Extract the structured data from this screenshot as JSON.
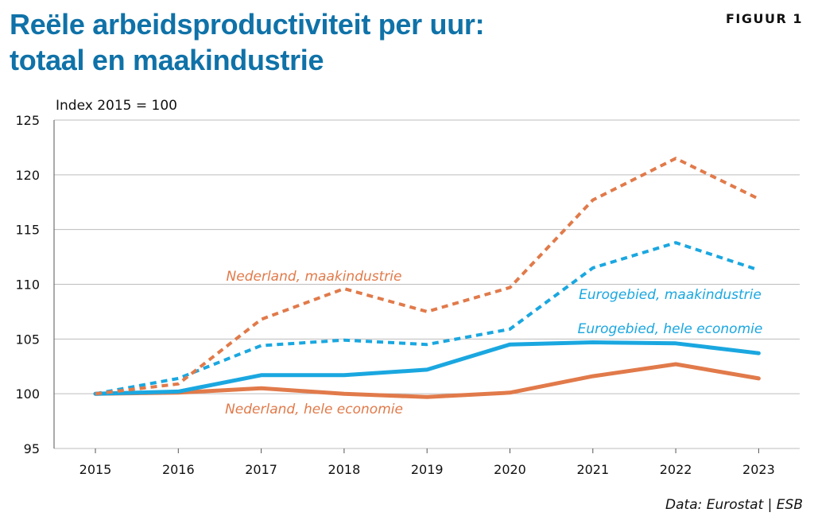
{
  "header": {
    "title_line1": "Reële arbeidsproductiviteit per uur:",
    "title_line2": "totaal en maakindustrie",
    "figure_label": "FIGUUR 1"
  },
  "source": "Data: Eurostat | ESB",
  "chart_data": {
    "type": "line",
    "title": "Reële arbeidsproductiviteit per uur: totaal en maakindustrie",
    "ylabel": "Index 2015 = 100",
    "xlabel": "",
    "ylim": [
      95,
      125
    ],
    "yticks": [
      95,
      100,
      105,
      110,
      115,
      120,
      125
    ],
    "x": [
      "2015",
      "2016",
      "2017",
      "2018",
      "2019",
      "2020",
      "2021",
      "2022",
      "2023"
    ],
    "grid": true,
    "colors": {
      "orange": "#e17a4a",
      "blue": "#1aa7e0",
      "gridline": "#bdbdbd",
      "title": "#0f72a8"
    },
    "series": [
      {
        "name": "Nederland, maakindustrie",
        "color": "#e17a4a",
        "style": "dotted",
        "values": [
          100,
          100.9,
          106.8,
          109.6,
          107.5,
          109.7,
          117.7,
          121.5,
          117.8
        ]
      },
      {
        "name": "Eurogebied, maakindustrie",
        "color": "#1aa7e0",
        "style": "dotted",
        "values": [
          100,
          101.4,
          104.4,
          104.9,
          104.5,
          105.9,
          111.5,
          113.8,
          111.3
        ]
      },
      {
        "name": "Eurogebied, hele economie",
        "color": "#1aa7e0",
        "style": "solid",
        "values": [
          100,
          100.2,
          101.7,
          101.7,
          102.2,
          104.5,
          104.7,
          104.6,
          103.7
        ]
      },
      {
        "name": "Nederland, hele economie",
        "color": "#e17a4a",
        "style": "solid",
        "values": [
          100,
          100.1,
          100.5,
          100.0,
          99.7,
          100.1,
          101.6,
          102.7,
          101.4
        ]
      }
    ]
  }
}
